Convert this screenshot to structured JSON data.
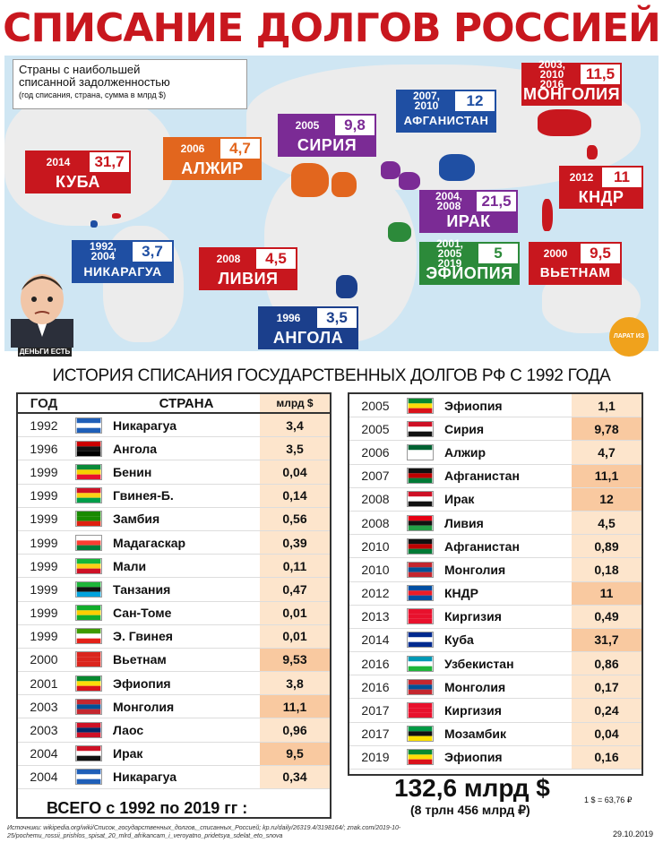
{
  "title": "СПИСАНИЕ ДОЛГОВ РОССИЕЙ",
  "legend": {
    "line1": "Страны с наибольшей",
    "line2": "списанной задолженностью",
    "line3": "(год списания, страна, сумма в млрд $)"
  },
  "map_labels": [
    {
      "years": "2003, 2010 2016",
      "amount": "11,5",
      "country": "МОНГОЛИЯ"
    },
    {
      "years": "2007, 2010",
      "amount": "12",
      "country": "АФГАНИСТАН"
    },
    {
      "years": "2005",
      "amount": "9,8",
      "country": "СИРИЯ"
    },
    {
      "years": "2006",
      "amount": "4,7",
      "country": "АЛЖИР"
    },
    {
      "years": "2014",
      "amount": "31,7",
      "country": "КУБА"
    },
    {
      "years": "2012",
      "amount": "11",
      "country": "КНДР"
    },
    {
      "years": "2004, 2008",
      "amount": "21,5",
      "country": "ИРАК"
    },
    {
      "years": "2001, 2005 2019",
      "amount": "5",
      "country": "ЭФИОПИЯ"
    },
    {
      "years": "1992, 2004",
      "amount": "3,7",
      "country": "НИКАРАГУА"
    },
    {
      "years": "2008",
      "amount": "4,5",
      "country": "ЛИВИЯ"
    },
    {
      "years": "2000",
      "amount": "9,5",
      "country": "ВЬЕТНАМ"
    },
    {
      "years": "1996",
      "amount": "3,5",
      "country": "АНГОЛА"
    }
  ],
  "portrait_caption": "ДЕНЬГИ ЕСТЬ",
  "logo_text": "ЛАРАТ ИЗ",
  "subtitle": "ИСТОРИЯ СПИСАНИЯ ГОСУДАРСТВЕННЫХ ДОЛГОВ РФ С 1992 ГОДА",
  "table_headers": {
    "year": "ГОД",
    "country": "СТРАНА",
    "value": "млрд $"
  },
  "rows_left": [
    {
      "year": "1992",
      "country": "Никарагуа",
      "value": "3,4",
      "flag": [
        "#1f5fb8",
        "#ffffff",
        "#1f5fb8"
      ]
    },
    {
      "year": "1996",
      "country": "Ангола",
      "value": "3,5",
      "flag": [
        "#cc0000",
        "#111111"
      ]
    },
    {
      "year": "1999",
      "country": "Бенин",
      "value": "0,04",
      "flag": [
        "#0a8a3a",
        "#f5d000",
        "#e8112d"
      ]
    },
    {
      "year": "1999",
      "country": "Гвинея-Б.",
      "value": "0,14",
      "flag": [
        "#ce1126",
        "#fcd116",
        "#009e49"
      ]
    },
    {
      "year": "1999",
      "country": "Замбия",
      "value": "0,56",
      "flag": [
        "#198a00",
        "#198a00",
        "#de2010"
      ]
    },
    {
      "year": "1999",
      "country": "Мадагаскар",
      "value": "0,39",
      "flag": [
        "#ffffff",
        "#fc3d32",
        "#007e3a"
      ]
    },
    {
      "year": "1999",
      "country": "Мали",
      "value": "0,11",
      "flag": [
        "#14b53a",
        "#fcd116",
        "#ce1126"
      ]
    },
    {
      "year": "1999",
      "country": "Танзания",
      "value": "0,47",
      "flag": [
        "#1eb53a",
        "#111111",
        "#00a3dd"
      ]
    },
    {
      "year": "1999",
      "country": "Сан-Томе",
      "value": "0,01",
      "flag": [
        "#12ad2b",
        "#ffce00",
        "#12ad2b"
      ]
    },
    {
      "year": "1999",
      "country": "Э. Гвинея",
      "value": "0,01",
      "flag": [
        "#3e9a00",
        "#ffffff",
        "#e32118"
      ]
    },
    {
      "year": "2000",
      "country": "Вьетнам",
      "value": "9,53",
      "flag": [
        "#da251d",
        "#da251d",
        "#da251d"
      ]
    },
    {
      "year": "2001",
      "country": "Эфиопия",
      "value": "3,8",
      "flag": [
        "#078930",
        "#fcdd09",
        "#da121a"
      ]
    },
    {
      "year": "2003",
      "country": "Монголия",
      "value": "11,1",
      "flag": [
        "#c4272f",
        "#015197",
        "#c4272f"
      ]
    },
    {
      "year": "2003",
      "country": "Лаос",
      "value": "0,96",
      "flag": [
        "#ce1126",
        "#002868",
        "#ce1126"
      ]
    },
    {
      "year": "2004",
      "country": "Ирак",
      "value": "9,5",
      "flag": [
        "#ce1126",
        "#ffffff",
        "#111111"
      ]
    },
    {
      "year": "2004",
      "country": "Никарагуа",
      "value": "0,34",
      "flag": [
        "#1f5fb8",
        "#ffffff",
        "#1f5fb8"
      ]
    }
  ],
  "rows_right": [
    {
      "year": "2005",
      "country": "Эфиопия",
      "value": "1,1",
      "flag": [
        "#078930",
        "#fcdd09",
        "#da121a"
      ]
    },
    {
      "year": "2005",
      "country": "Сирия",
      "value": "9,78",
      "flag": [
        "#ce1126",
        "#ffffff",
        "#111111"
      ]
    },
    {
      "year": "2006",
      "country": "Алжир",
      "value": "4,7",
      "flag": [
        "#006233",
        "#ffffff",
        "#ffffff"
      ]
    },
    {
      "year": "2007",
      "country": "Афганистан",
      "value": "11,1",
      "flag": [
        "#111111",
        "#be0000",
        "#007a36"
      ]
    },
    {
      "year": "2008",
      "country": "Ирак",
      "value": "12",
      "flag": [
        "#ce1126",
        "#ffffff",
        "#111111"
      ]
    },
    {
      "year": "2008",
      "country": "Ливия",
      "value": "4,5",
      "flag": [
        "#e70013",
        "#111111",
        "#239e46"
      ]
    },
    {
      "year": "2010",
      "country": "Афганистан",
      "value": "0,89",
      "flag": [
        "#111111",
        "#be0000",
        "#007a36"
      ]
    },
    {
      "year": "2010",
      "country": "Монголия",
      "value": "0,18",
      "flag": [
        "#c4272f",
        "#015197",
        "#c4272f"
      ]
    },
    {
      "year": "2012",
      "country": "КНДР",
      "value": "11",
      "flag": [
        "#024fa2",
        "#ed1c27",
        "#024fa2"
      ]
    },
    {
      "year": "2013",
      "country": "Киргизия",
      "value": "0,49",
      "flag": [
        "#e8112d",
        "#e8112d",
        "#e8112d"
      ]
    },
    {
      "year": "2014",
      "country": "Куба",
      "value": "31,7",
      "flag": [
        "#002a8f",
        "#ffffff",
        "#002a8f"
      ]
    },
    {
      "year": "2016",
      "country": "Узбекистан",
      "value": "0,86",
      "flag": [
        "#0099b5",
        "#ffffff",
        "#1eb53a"
      ]
    },
    {
      "year": "2016",
      "country": "Монголия",
      "value": "0,17",
      "flag": [
        "#c4272f",
        "#015197",
        "#c4272f"
      ]
    },
    {
      "year": "2017",
      "country": "Киргизия",
      "value": "0,24",
      "flag": [
        "#e8112d",
        "#e8112d",
        "#e8112d"
      ]
    },
    {
      "year": "2017",
      "country": "Мозамбик",
      "value": "0,04",
      "flag": [
        "#009a44",
        "#111111",
        "#fce100"
      ]
    },
    {
      "year": "2019",
      "country": "Эфиопия",
      "value": "0,16",
      "flag": [
        "#078930",
        "#fcdd09",
        "#da121a"
      ]
    }
  ],
  "total": {
    "label": "ВСЕГО с 1992 по 2019 гг :",
    "amount": "132,6 млрд $",
    "rub": "(8 трлн 456 млрд ₽)",
    "rate": "1 $ = 63,76 ₽"
  },
  "source": "Источники: wikipedia.org/wiki/Список_государственных_долгов,_списанных_Россией; kp.ru/daily/26319.4/3198164/; znak.com/2019-10-25/pochemu_rossii_prishlos_spisat_20_mlrd_afrikancam_i_veroyatno_pridetsya_sdelat_eto_snova",
  "date": "29.10.2019"
}
